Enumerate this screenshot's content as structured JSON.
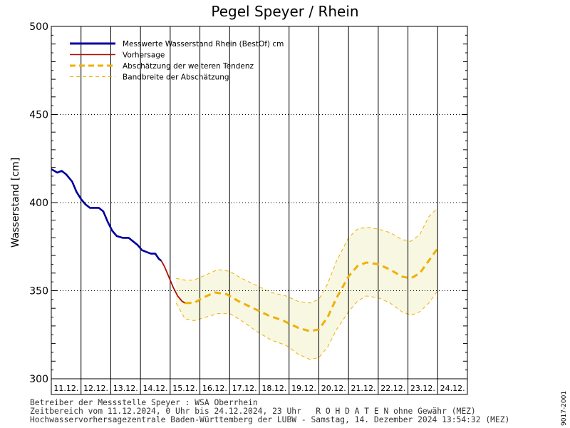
{
  "chart_data": {
    "type": "line",
    "title": "Pegel Speyer / Rhein",
    "ylabel": "Wasserstand [cm]",
    "xlabel": "",
    "ylim": [
      300,
      500
    ],
    "yticks": [
      300,
      350,
      400,
      450,
      500
    ],
    "x_days": [
      "11.12.",
      "12.12.",
      "13.12.",
      "14.12.",
      "15.12.",
      "16.12.",
      "17.12.",
      "18.12.",
      "19.12.",
      "20.12.",
      "21.12.",
      "22.12.",
      "23.12.",
      "24.12."
    ],
    "grid": true,
    "legend_position": "top-left",
    "legend": [
      {
        "label": "Messwerte Wasserstand Rhein (BestOf)   cm",
        "color": "#0000a0",
        "style": "solid-thick"
      },
      {
        "label": "Vorhersage",
        "color": "#b01000",
        "style": "solid"
      },
      {
        "label": "Abschätzung der weiteren Tendenz",
        "color": "#f0b000",
        "style": "dashed-thick"
      },
      {
        "label": "Bandbreite der Abschätzung",
        "color": "#f0b000",
        "style": "dashed-thin"
      }
    ],
    "series": [
      {
        "name": "Messwerte Wasserstand Rhein (BestOf)   cm",
        "points": [
          [
            0.0,
            419
          ],
          [
            0.1,
            418
          ],
          [
            0.2,
            417
          ],
          [
            0.35,
            418
          ],
          [
            0.5,
            416
          ],
          [
            0.7,
            412
          ],
          [
            0.85,
            406
          ],
          [
            1.0,
            402
          ],
          [
            1.15,
            399
          ],
          [
            1.3,
            397
          ],
          [
            1.45,
            397
          ],
          [
            1.6,
            397
          ],
          [
            1.75,
            395
          ],
          [
            1.9,
            389
          ],
          [
            2.05,
            384
          ],
          [
            2.2,
            381
          ],
          [
            2.4,
            380
          ],
          [
            2.6,
            380
          ],
          [
            2.75,
            378
          ],
          [
            2.9,
            376
          ],
          [
            3.05,
            373
          ],
          [
            3.2,
            372
          ],
          [
            3.35,
            371
          ],
          [
            3.5,
            371
          ],
          [
            3.62,
            368
          ],
          [
            3.7,
            367
          ]
        ]
      },
      {
        "name": "Vorhersage",
        "points": [
          [
            3.7,
            367
          ],
          [
            3.8,
            364
          ],
          [
            3.95,
            358
          ],
          [
            4.1,
            352
          ],
          [
            4.25,
            347
          ],
          [
            4.4,
            344
          ],
          [
            4.5,
            343
          ]
        ]
      },
      {
        "name": "Abschätzung der weiteren Tendenz",
        "points": [
          [
            4.5,
            343
          ],
          [
            4.8,
            343
          ],
          [
            5.1,
            346
          ],
          [
            5.5,
            349
          ],
          [
            5.9,
            348
          ],
          [
            6.3,
            344
          ],
          [
            6.8,
            340
          ],
          [
            7.3,
            336
          ],
          [
            7.8,
            333
          ],
          [
            8.3,
            329
          ],
          [
            8.7,
            327
          ],
          [
            9.0,
            328
          ],
          [
            9.3,
            335
          ],
          [
            9.6,
            346
          ],
          [
            10.0,
            358
          ],
          [
            10.3,
            364
          ],
          [
            10.6,
            366
          ],
          [
            11.0,
            365
          ],
          [
            11.4,
            362
          ],
          [
            11.8,
            358
          ],
          [
            12.1,
            357
          ],
          [
            12.4,
            360
          ],
          [
            12.7,
            367
          ],
          [
            13.0,
            374
          ]
        ]
      }
    ],
    "band": {
      "name": "Bandbreite der Abschätzung",
      "upper": [
        [
          4.2,
          357
        ],
        [
          4.5,
          356
        ],
        [
          4.8,
          356
        ],
        [
          5.2,
          359
        ],
        [
          5.6,
          362
        ],
        [
          6.0,
          361
        ],
        [
          6.4,
          357
        ],
        [
          6.9,
          353
        ],
        [
          7.4,
          349
        ],
        [
          7.9,
          347
        ],
        [
          8.3,
          344
        ],
        [
          8.7,
          343
        ],
        [
          9.0,
          345
        ],
        [
          9.3,
          354
        ],
        [
          9.6,
          367
        ],
        [
          10.0,
          380
        ],
        [
          10.3,
          385
        ],
        [
          10.6,
          386
        ],
        [
          11.0,
          385
        ],
        [
          11.4,
          383
        ],
        [
          11.8,
          379
        ],
        [
          12.1,
          378
        ],
        [
          12.4,
          382
        ],
        [
          12.7,
          392
        ],
        [
          13.0,
          397
        ]
      ],
      "lower": [
        [
          4.2,
          343
        ],
        [
          4.5,
          334
        ],
        [
          4.8,
          333
        ],
        [
          5.2,
          335
        ],
        [
          5.6,
          337
        ],
        [
          6.0,
          337
        ],
        [
          6.4,
          333
        ],
        [
          6.9,
          327
        ],
        [
          7.4,
          322
        ],
        [
          7.9,
          319
        ],
        [
          8.3,
          314
        ],
        [
          8.7,
          311
        ],
        [
          9.0,
          312
        ],
        [
          9.3,
          318
        ],
        [
          9.6,
          328
        ],
        [
          10.0,
          338
        ],
        [
          10.3,
          344
        ],
        [
          10.6,
          347
        ],
        [
          11.0,
          346
        ],
        [
          11.4,
          343
        ],
        [
          11.8,
          338
        ],
        [
          12.1,
          336
        ],
        [
          12.4,
          338
        ],
        [
          12.7,
          343
        ],
        [
          13.0,
          350
        ]
      ]
    }
  },
  "footer": {
    "line1": "Betreiber der Messstelle Speyer : WSA Oberrhein",
    "line2": "Zeitbereich vom 11.12.2024, 0 Uhr bis 24.12.2024, 23 Uhr   R O H D A T E N ohne Gewähr (MEZ)",
    "line3": "Hochwasservorhersagezentrale Baden-Württemberg der LUBW - Samstag, 14. Dezember 2024 13:54:32 (MEZ)"
  },
  "side_code": "9017-2001"
}
